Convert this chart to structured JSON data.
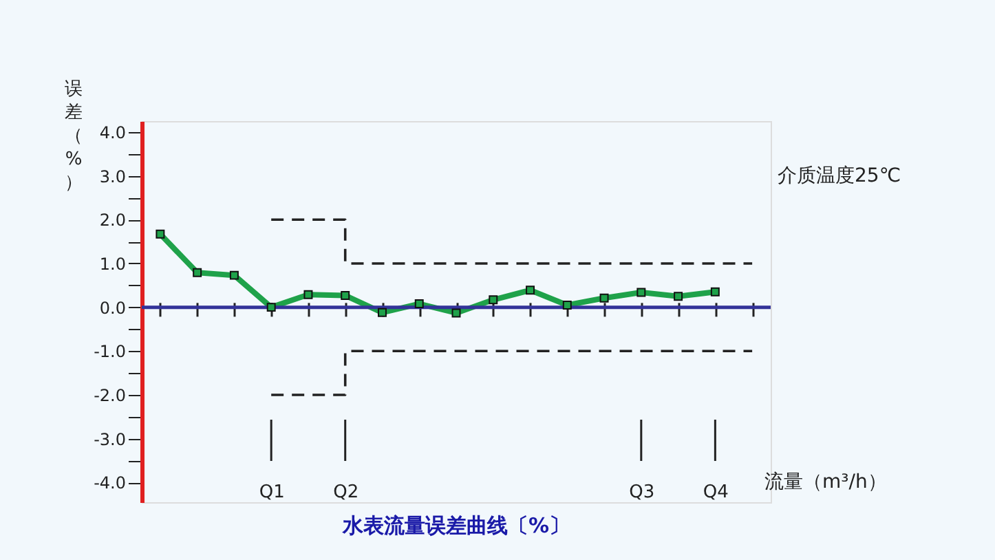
{
  "chart_data": {
    "type": "line",
    "title": "水表流量误差曲线〔%〕",
    "xlabel": "流量（m³/h）",
    "ylabel": "误差（%）",
    "annotations": [
      "介质温度25℃"
    ],
    "categories": [
      null,
      null,
      null,
      "Q1",
      null,
      "Q2",
      null,
      null,
      null,
      null,
      null,
      null,
      null,
      "Q3",
      null,
      "Q4",
      null
    ],
    "ylim": [
      -4.45,
      4.25
    ],
    "yticks": [
      {
        "value": -4,
        "label": "-4.0"
      },
      {
        "value": -3.5,
        "label": null
      },
      {
        "value": -3,
        "label": "-3.0"
      },
      {
        "value": -2.5,
        "label": null
      },
      {
        "value": -2,
        "label": "-2.0"
      },
      {
        "value": -1.5,
        "label": null
      },
      {
        "value": -1,
        "label": "-1.0"
      },
      {
        "value": -0.5,
        "label": null
      },
      {
        "value": 0,
        "label": "0.0"
      },
      {
        "value": 0.5,
        "label": null
      },
      {
        "value": 1,
        "label": "1.0"
      },
      {
        "value": 1.5,
        "label": null
      },
      {
        "value": 2,
        "label": "2.0"
      },
      {
        "value": 2.5,
        "label": null
      },
      {
        "value": 3,
        "label": "3.0"
      },
      {
        "value": 3.5,
        "label": null
      },
      {
        "value": 4,
        "label": "4.0"
      }
    ],
    "grid": false,
    "ref_lines": [
      {
        "axis": "y",
        "value": 0,
        "label": null,
        "color": "#333399"
      },
      {
        "axis": "x",
        "value": "Q1",
        "label": null,
        "color": "#222222"
      },
      {
        "axis": "x",
        "value": "Q2",
        "label": null,
        "color": "#222222"
      },
      {
        "axis": "x",
        "value": "Q3",
        "label": null,
        "color": "#222222"
      },
      {
        "axis": "x",
        "value": "Q4",
        "label": null,
        "color": "#222222"
      }
    ],
    "series": [
      {
        "color": "#1fa24a",
        "marker": "square",
        "line_style": "solid",
        "values": [
          1.67,
          0.79,
          0.73,
          0.0,
          0.29,
          0.27,
          -0.12,
          0.08,
          -0.13,
          0.17,
          0.39,
          0.05,
          0.21,
          0.34,
          0.25,
          0.35,
          null
        ]
      },
      {
        "type": "step",
        "color": "#222222",
        "marker": "none",
        "line_style": "dashed",
        "values": [
          null,
          null,
          null,
          2,
          2,
          1,
          1,
          1,
          1,
          1,
          1,
          1,
          1,
          1,
          1,
          1,
          1
        ]
      },
      {
        "type": "step",
        "color": "#222222",
        "marker": "none",
        "line_style": "dashed",
        "values": [
          null,
          null,
          null,
          -2,
          -2,
          -1,
          -1,
          -1,
          -1,
          -1,
          -1,
          -1,
          -1,
          -1,
          -1,
          -1,
          -1
        ]
      }
    ]
  }
}
